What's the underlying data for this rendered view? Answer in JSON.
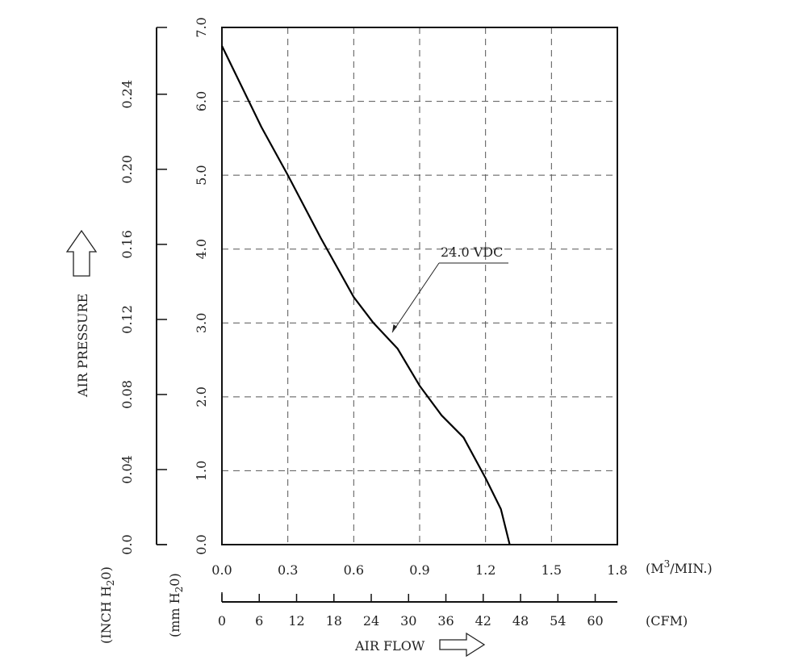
{
  "chart_data": {
    "type": "line",
    "x_unit_label": "(M",
    "x_unit_sup": "3",
    "x_unit_tail": "/MIN.)",
    "x_ticks": [
      "0.0",
      "0.3",
      "0.6",
      "0.9",
      "1.2",
      "1.5",
      "1.8"
    ],
    "xlim": [
      0,
      1.8
    ],
    "cfm_unit_label": "(CFM)",
    "cfm_ticks": [
      "0",
      "6",
      "12",
      "18",
      "24",
      "30",
      "36",
      "42",
      "48",
      "54",
      "60"
    ],
    "cfm_lim": [
      0,
      63.56
    ],
    "y_mm_ticks": [
      "0.0",
      "1.0",
      "2.0",
      "3.0",
      "4.0",
      "5.0",
      "6.0",
      "7.0"
    ],
    "ylim": [
      0,
      7
    ],
    "y_inch_ticks": [
      "0.0",
      "0.04",
      "0.08",
      "0.12",
      "0.16",
      "0.20",
      "0.24"
    ],
    "y_inch_lim": [
      0,
      0.2756
    ],
    "y_mm_unit_pre": "(mm H",
    "y_mm_unit_sub": "2",
    "y_mm_unit_post": "0)",
    "y_inch_unit_pre": "(INCH H",
    "y_inch_unit_sub": "2",
    "y_inch_unit_post": "0)",
    "ylabel": "AIR PRESSURE",
    "xlabel": "AIR FLOW",
    "grid": true,
    "series": [
      {
        "name": "24.0 VDC",
        "x": [
          0.0,
          0.18,
          0.3,
          0.45,
          0.6,
          0.69,
          0.8,
          0.9,
          1.0,
          1.1,
          1.2,
          1.27,
          1.31
        ],
        "y": [
          6.75,
          5.65,
          5.0,
          4.15,
          3.35,
          3.0,
          2.65,
          2.15,
          1.75,
          1.45,
          0.9,
          0.48,
          0.0
        ]
      }
    ]
  }
}
